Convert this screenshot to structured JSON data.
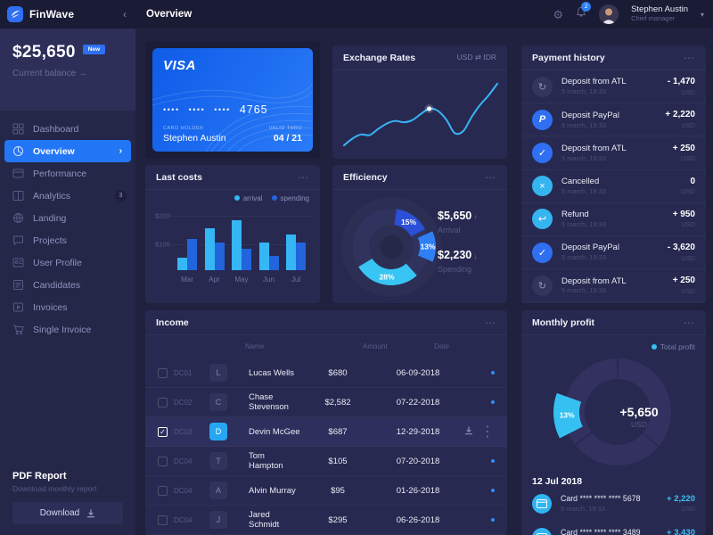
{
  "topbar": {
    "brand": "FinWave",
    "collapse_icon": "‹",
    "page_title": "Overview",
    "notifications": "2",
    "user": {
      "name": "Stephen Austin",
      "role": "Chief manager"
    }
  },
  "sidebar": {
    "balance": "$25,650",
    "balance_badge": "New",
    "balance_label": "Current balance →",
    "items": [
      {
        "label": "Dashboard",
        "icon": "dashboard-icon"
      },
      {
        "label": "Overview",
        "icon": "overview-icon",
        "active": true
      },
      {
        "label": "Performance",
        "icon": "performance-icon"
      },
      {
        "label": "Analytics",
        "icon": "analytics-icon",
        "badge": "3"
      },
      {
        "label": "Landing",
        "icon": "landing-icon"
      },
      {
        "label": "Projects",
        "icon": "projects-icon"
      },
      {
        "label": "User Profile",
        "icon": "user-profile-icon"
      },
      {
        "label": "Candidates",
        "icon": "candidates-icon"
      },
      {
        "label": "Invoices",
        "icon": "invoices-icon"
      },
      {
        "label": "Single Invoice",
        "icon": "single-invoice-icon"
      }
    ],
    "report": {
      "title": "PDF Report",
      "subtitle": "Download monthly report",
      "button": "Download"
    }
  },
  "card": {
    "brand": "VISA",
    "dots_groups": [
      "••••",
      "••••",
      "••••"
    ],
    "last4": "4765",
    "holder_label": "CARD HOLDER",
    "holder": "Stephen Austin",
    "valid_label": "VALID THRU",
    "valid": "04 / 21"
  },
  "exchange": {
    "title": "Exchange Rates",
    "pair": "USD ⇄ IDR"
  },
  "payments": {
    "title": "Payment history",
    "rows": [
      {
        "icon": "refresh",
        "title": "Deposit from ATL",
        "time": "5 march, 19:33",
        "amount": "- 1,470",
        "currency": "USD"
      },
      {
        "icon": "paypal",
        "title": "Deposit PayPal",
        "time": "5 march, 19:33",
        "amount": "+ 2,220",
        "currency": "USD"
      },
      {
        "icon": "check",
        "title": "Deposit from ATL",
        "time": "5 march, 19:33",
        "amount": "+ 250",
        "currency": "USD"
      },
      {
        "icon": "cancel",
        "title": "Cancelled",
        "time": "5 march, 19:33",
        "amount": "0",
        "currency": "USD"
      },
      {
        "icon": "refund",
        "title": "Refund",
        "time": "5 march, 19:33",
        "amount": "+ 950",
        "currency": "USD"
      },
      {
        "icon": "check",
        "title": "Deposit PayPal",
        "time": "5 march, 19:33",
        "amount": "- 3,620",
        "currency": "USD"
      },
      {
        "icon": "refresh",
        "title": "Deposit from ATL",
        "time": "5 march, 19:33",
        "amount": "+ 250",
        "currency": "USD"
      }
    ]
  },
  "income": {
    "title": "Income",
    "columns": [
      "Name",
      "Amount",
      "Date"
    ],
    "rows": [
      {
        "code": "DC01",
        "initial": "L",
        "name": "Lucas Wells",
        "amount": "$680",
        "date": "06-09-2018",
        "checked": false,
        "selected": false
      },
      {
        "code": "DC02",
        "initial": "C",
        "name": "Chase Stevenson",
        "amount": "$2,582",
        "date": "07-22-2018",
        "checked": false,
        "selected": false
      },
      {
        "code": "DC03",
        "initial": "D",
        "name": "Devin McGee",
        "amount": "$687",
        "date": "12-29-2018",
        "checked": true,
        "selected": true
      },
      {
        "code": "DC04",
        "initial": "T",
        "name": "Tom Hampton",
        "amount": "$105",
        "date": "07-20-2018",
        "checked": false,
        "selected": false
      },
      {
        "code": "DC04",
        "initial": "A",
        "name": "Alvin Murray",
        "amount": "$95",
        "date": "01-26-2018",
        "checked": false,
        "selected": false
      },
      {
        "code": "DC04",
        "initial": "J",
        "name": "Jared Schmidt",
        "amount": "$295",
        "date": "06-26-2018",
        "checked": false,
        "selected": false
      }
    ]
  },
  "monthly": {
    "title": "Monthly profit",
    "legend": "Total profit",
    "date_header": "12 Jul 2018",
    "rows": [
      {
        "icon": "card",
        "title": "Card **** **** **** 5678",
        "time": "5 march, 19:33",
        "amount": "+ 2,220",
        "currency": "USD"
      },
      {
        "icon": "card",
        "title": "Card **** **** **** 3489",
        "time": "5 march, 19:33",
        "amount": "+ 3,430",
        "currency": "USD"
      }
    ]
  },
  "chart_data": [
    {
      "id": "exchange_rates",
      "type": "line",
      "title": "Exchange Rates",
      "pair": "USD ⇄ IDR",
      "y_norm_percent": [
        4,
        14,
        20,
        19,
        28,
        36,
        40,
        38,
        41,
        50,
        58,
        55,
        42,
        22,
        25,
        46,
        64,
        78,
        95
      ],
      "highlight_index": 10,
      "line_color": "#38b4f4",
      "grid": false,
      "axes_labeled": false
    },
    {
      "id": "last_costs",
      "type": "bar",
      "title": "Last costs",
      "categories": [
        "Mar",
        "Apr",
        "May",
        "Jun",
        "Jul"
      ],
      "series": [
        {
          "name": "arrival",
          "color": "#35b6f5",
          "values": [
            30,
            100,
            120,
            65,
            85
          ]
        },
        {
          "name": "spending",
          "color": "#2264dc",
          "values": [
            75,
            65,
            50,
            35,
            65
          ]
        }
      ],
      "ylabels": [
        "$200",
        "$100"
      ],
      "ylim": [
        0,
        230
      ],
      "legend_position": "top-right"
    },
    {
      "id": "efficiency",
      "type": "donut",
      "title": "Efficiency",
      "segments": [
        {
          "label": "15%",
          "value": 15,
          "color": "#2b4fd7",
          "exploded": false
        },
        {
          "label": "13%",
          "value": 13,
          "color": "#2f80f5",
          "exploded": true
        },
        {
          "label": "28%",
          "value": 28,
          "color": "#38c5f3",
          "exploded": false
        },
        {
          "label": "",
          "value": 44,
          "color": "#31335f",
          "exploded": false
        }
      ],
      "stats": [
        {
          "value": "$5,650",
          "direction": "↑",
          "label": "Arrival"
        },
        {
          "value": "$2,230",
          "direction": "↓",
          "label": "Spending"
        }
      ]
    },
    {
      "id": "monthly_profit",
      "type": "donut",
      "title": "Monthly profit",
      "legend": "Total profit",
      "segments": [
        {
          "label": "13%",
          "value": 13,
          "color": "#35c0f2",
          "exploded": true
        },
        {
          "label": "",
          "value": 87,
          "color": "#333160",
          "exploded": false
        }
      ],
      "center": {
        "value": "+5,650",
        "unit": "USD"
      }
    }
  ],
  "colors": {
    "accent_blue": "#2f6ff2",
    "cyan": "#35bdf4",
    "panel": "#272950",
    "background": "#20213f",
    "sidebar": "#252749",
    "topbar": "#1a1b35",
    "card_blue": "#1665ec",
    "muted_text": "#565a85"
  },
  "glyphs": {
    "menu_dots": "⋯",
    "kebab": "⋮",
    "refresh": "↻",
    "check": "✓",
    "cancel": "×",
    "refund": "↩",
    "chevron_right": "›",
    "chevron_down": "▾",
    "gear": "⚙"
  }
}
